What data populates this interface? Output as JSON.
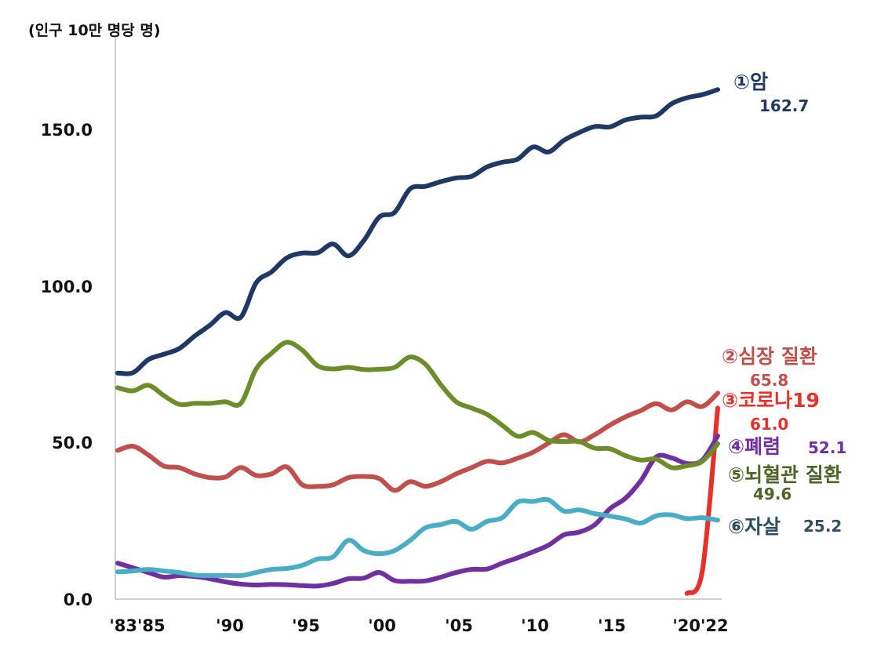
{
  "chart_data": {
    "type": "line",
    "unit_label": "(인구 10만 명당 명)",
    "y_ticks": [
      "150.0",
      "100.0",
      "50.0",
      "0.0"
    ],
    "x_tick_labels": [
      "'83'85",
      "'90",
      "'95",
      "'00",
      "'05",
      "'10",
      "'15",
      "'20'22"
    ],
    "ylim": [
      0,
      170
    ],
    "xlim": [
      1983,
      2022
    ],
    "grid": false,
    "series": [
      {
        "name": "①암",
        "value_label": "162.7",
        "color": "#1f3864",
        "points": [
          [
            1983,
            72.2
          ],
          [
            1984,
            72.3
          ],
          [
            1985,
            76.5
          ],
          [
            1986,
            78.2
          ],
          [
            1987,
            80.0
          ],
          [
            1988,
            84.0
          ],
          [
            1989,
            87.5
          ],
          [
            1990,
            91.5
          ],
          [
            1991,
            90.0
          ],
          [
            1992,
            101.0
          ],
          [
            1993,
            104.5
          ],
          [
            1994,
            109.0
          ],
          [
            1995,
            110.5
          ],
          [
            1996,
            110.6
          ],
          [
            1997,
            113.4
          ],
          [
            1998,
            109.6
          ],
          [
            1999,
            114.5
          ],
          [
            2000,
            122.0
          ],
          [
            2001,
            123.5
          ],
          [
            2002,
            131.0
          ],
          [
            2003,
            131.8
          ],
          [
            2004,
            133.3
          ],
          [
            2005,
            134.5
          ],
          [
            2006,
            135.0
          ],
          [
            2007,
            138.0
          ],
          [
            2008,
            139.5
          ],
          [
            2009,
            140.5
          ],
          [
            2010,
            144.4
          ],
          [
            2011,
            142.8
          ],
          [
            2012,
            146.5
          ],
          [
            2013,
            149.0
          ],
          [
            2014,
            150.9
          ],
          [
            2015,
            150.8
          ],
          [
            2016,
            153.0
          ],
          [
            2017,
            153.9
          ],
          [
            2018,
            154.3
          ],
          [
            2019,
            158.2
          ],
          [
            2020,
            160.1
          ],
          [
            2021,
            161.1
          ],
          [
            2022,
            162.7
          ]
        ]
      },
      {
        "name": "②심장 질환",
        "value_label": "65.8",
        "color": "#c0504d",
        "points": [
          [
            1983,
            47.5
          ],
          [
            1984,
            48.8
          ],
          [
            1985,
            46.0
          ],
          [
            1986,
            42.5
          ],
          [
            1987,
            42.0
          ],
          [
            1988,
            40.0
          ],
          [
            1989,
            38.8
          ],
          [
            1990,
            39.0
          ],
          [
            1991,
            42.0
          ],
          [
            1992,
            39.5
          ],
          [
            1993,
            40.0
          ],
          [
            1994,
            42.2
          ],
          [
            1995,
            36.5
          ],
          [
            1996,
            36.0
          ],
          [
            1997,
            36.5
          ],
          [
            1998,
            38.8
          ],
          [
            1999,
            39.2
          ],
          [
            2000,
            38.5
          ],
          [
            2001,
            34.7
          ],
          [
            2002,
            37.5
          ],
          [
            2003,
            36.0
          ],
          [
            2004,
            37.5
          ],
          [
            2005,
            40.0
          ],
          [
            2006,
            42.0
          ],
          [
            2007,
            44.0
          ],
          [
            2008,
            43.5
          ],
          [
            2009,
            45.0
          ],
          [
            2010,
            46.9
          ],
          [
            2011,
            49.8
          ],
          [
            2012,
            52.5
          ],
          [
            2013,
            50.2
          ],
          [
            2014,
            52.5
          ],
          [
            2015,
            55.6
          ],
          [
            2016,
            58.2
          ],
          [
            2017,
            60.2
          ],
          [
            2018,
            62.4
          ],
          [
            2019,
            60.4
          ],
          [
            2020,
            63.0
          ],
          [
            2021,
            61.5
          ],
          [
            2022,
            65.8
          ]
        ]
      },
      {
        "name": "③코로나19",
        "value_label": "61.0",
        "color": "#e8302a",
        "points": [
          [
            2020,
            1.8
          ],
          [
            2021,
            9.1
          ],
          [
            2022,
            61.0
          ]
        ]
      },
      {
        "name": "④폐렴",
        "value_label": "52.1",
        "color": "#7030a0",
        "points": [
          [
            1983,
            11.5
          ],
          [
            1984,
            10.0
          ],
          [
            1985,
            8.5
          ],
          [
            1986,
            7.0
          ],
          [
            1987,
            7.5
          ],
          [
            1988,
            7.2
          ],
          [
            1989,
            6.5
          ],
          [
            1990,
            5.5
          ],
          [
            1991,
            4.8
          ],
          [
            1992,
            4.5
          ],
          [
            1993,
            4.7
          ],
          [
            1994,
            4.6
          ],
          [
            1995,
            4.3
          ],
          [
            1996,
            4.2
          ],
          [
            1997,
            5.0
          ],
          [
            1998,
            6.5
          ],
          [
            1999,
            6.7
          ],
          [
            2000,
            8.5
          ],
          [
            2001,
            5.9
          ],
          [
            2002,
            5.7
          ],
          [
            2003,
            5.8
          ],
          [
            2004,
            7.0
          ],
          [
            2005,
            8.5
          ],
          [
            2006,
            9.5
          ],
          [
            2007,
            9.6
          ],
          [
            2008,
            11.5
          ],
          [
            2009,
            13.2
          ],
          [
            2010,
            15.1
          ],
          [
            2011,
            17.2
          ],
          [
            2012,
            20.5
          ],
          [
            2013,
            21.4
          ],
          [
            2014,
            23.7
          ],
          [
            2015,
            28.9
          ],
          [
            2016,
            32.2
          ],
          [
            2017,
            37.8
          ],
          [
            2018,
            45.4
          ],
          [
            2019,
            45.1
          ],
          [
            2020,
            43.3
          ],
          [
            2021,
            44.4
          ],
          [
            2022,
            52.1
          ]
        ]
      },
      {
        "name": "⑤뇌혈관 질환",
        "value_label": "49.6",
        "color": "#6b8e2a",
        "points": [
          [
            1983,
            67.5
          ],
          [
            1984,
            66.5
          ],
          [
            1985,
            68.3
          ],
          [
            1986,
            65.0
          ],
          [
            1987,
            62.2
          ],
          [
            1988,
            62.5
          ],
          [
            1989,
            62.5
          ],
          [
            1990,
            63.0
          ],
          [
            1991,
            62.5
          ],
          [
            1992,
            73.5
          ],
          [
            1993,
            78.5
          ],
          [
            1994,
            82.0
          ],
          [
            1995,
            79.5
          ],
          [
            1996,
            74.5
          ],
          [
            1997,
            73.5
          ],
          [
            1998,
            74.0
          ],
          [
            1999,
            73.3
          ],
          [
            2000,
            73.4
          ],
          [
            2001,
            74.0
          ],
          [
            2002,
            77.3
          ],
          [
            2003,
            75.0
          ],
          [
            2004,
            68.5
          ],
          [
            2005,
            63.0
          ],
          [
            2006,
            61.0
          ],
          [
            2007,
            59.0
          ],
          [
            2008,
            55.5
          ],
          [
            2009,
            52.0
          ],
          [
            2010,
            53.2
          ],
          [
            2011,
            50.7
          ],
          [
            2012,
            50.3
          ],
          [
            2013,
            50.3
          ],
          [
            2014,
            48.2
          ],
          [
            2015,
            48.0
          ],
          [
            2016,
            45.8
          ],
          [
            2017,
            44.4
          ],
          [
            2018,
            44.7
          ],
          [
            2019,
            42.0
          ],
          [
            2020,
            42.6
          ],
          [
            2021,
            44.0
          ],
          [
            2022,
            49.6
          ]
        ]
      },
      {
        "name": "⑥자살",
        "value_label": "25.2",
        "color": "#4bacc6",
        "points": [
          [
            1983,
            8.7
          ],
          [
            1984,
            9.0
          ],
          [
            1985,
            9.5
          ],
          [
            1986,
            9.0
          ],
          [
            1987,
            8.5
          ],
          [
            1988,
            7.7
          ],
          [
            1989,
            7.5
          ],
          [
            1990,
            7.6
          ],
          [
            1991,
            7.5
          ],
          [
            1992,
            8.5
          ],
          [
            1993,
            9.5
          ],
          [
            1994,
            9.8
          ],
          [
            1995,
            10.8
          ],
          [
            1996,
            12.8
          ],
          [
            1997,
            13.5
          ],
          [
            1998,
            18.8
          ],
          [
            1999,
            15.5
          ],
          [
            2000,
            14.5
          ],
          [
            2001,
            15.5
          ],
          [
            2002,
            18.7
          ],
          [
            2003,
            22.8
          ],
          [
            2004,
            23.8
          ],
          [
            2005,
            24.8
          ],
          [
            2006,
            22.3
          ],
          [
            2007,
            24.8
          ],
          [
            2008,
            26.0
          ],
          [
            2009,
            31.0
          ],
          [
            2010,
            31.2
          ],
          [
            2011,
            31.7
          ],
          [
            2012,
            28.1
          ],
          [
            2013,
            28.5
          ],
          [
            2014,
            27.3
          ],
          [
            2015,
            26.5
          ],
          [
            2016,
            25.6
          ],
          [
            2017,
            24.3
          ],
          [
            2018,
            26.6
          ],
          [
            2019,
            26.9
          ],
          [
            2020,
            25.7
          ],
          [
            2021,
            26.0
          ],
          [
            2022,
            25.2
          ]
        ]
      }
    ]
  }
}
